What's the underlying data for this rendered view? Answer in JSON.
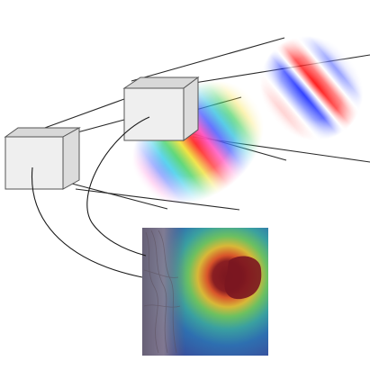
{
  "figure": {
    "kind": "schematic",
    "cubes": [
      {
        "id": "near-cube",
        "fill": "#efefef",
        "top": "#d8d8d8",
        "side": "#dcdcdc"
      },
      {
        "id": "far-cube",
        "fill": "#efefef",
        "top": "#d8d8d8",
        "side": "#dcdcdc"
      }
    ],
    "gabor_patches": [
      {
        "id": "rainbow-gabor-patch",
        "palette": "rainbow",
        "orientation": "diagonal"
      },
      {
        "id": "red-blue-gabor-patch",
        "palette": "red-blue",
        "orientation": "diagonal"
      }
    ],
    "map_panel": {
      "id": "heatmap-panel",
      "palette": [
        "#3a4a9a",
        "#2e6fb0",
        "#3aa0a0",
        "#6cc060",
        "#d8b838",
        "#d8542a",
        "#7a1620"
      ],
      "texture_color": "#8a7a80"
    }
  }
}
